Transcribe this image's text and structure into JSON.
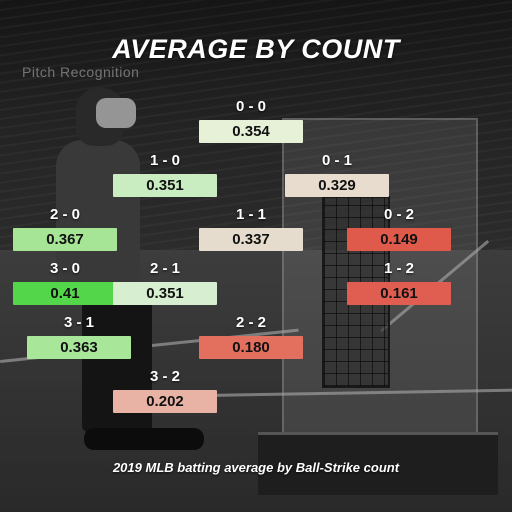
{
  "chart_data": {
    "type": "table",
    "title": "AVERAGE BY COUNT",
    "caption": "2019 MLB batting average by Ball-Strike count",
    "cells": [
      {
        "count": "0 - 0",
        "value": "0.354",
        "color": "#e6f1d7"
      },
      {
        "count": "1 - 0",
        "value": "0.351",
        "color": "#c9ecc1"
      },
      {
        "count": "0 - 1",
        "value": "0.329",
        "color": "#e7dccd"
      },
      {
        "count": "2 - 0",
        "value": "0.367",
        "color": "#a6e596"
      },
      {
        "count": "1 - 1",
        "value": "0.337",
        "color": "#e6dccd"
      },
      {
        "count": "0 - 2",
        "value": "0.149",
        "color": "#e05a4c"
      },
      {
        "count": "3 - 0",
        "value": "0.41",
        "color": "#54d64a"
      },
      {
        "count": "2 - 1",
        "value": "0.351",
        "color": "#d7eed0"
      },
      {
        "count": "1 - 2",
        "value": "0.161",
        "color": "#e05d51"
      },
      {
        "count": "3 - 1",
        "value": "0.363",
        "color": "#a8e69a"
      },
      {
        "count": "2 - 2",
        "value": "0.180",
        "color": "#e3705f"
      },
      {
        "count": "3 - 2",
        "value": "0.202",
        "color": "#e8b3a4"
      }
    ]
  },
  "background": {
    "wall_sign": "Pitch Recognition"
  }
}
